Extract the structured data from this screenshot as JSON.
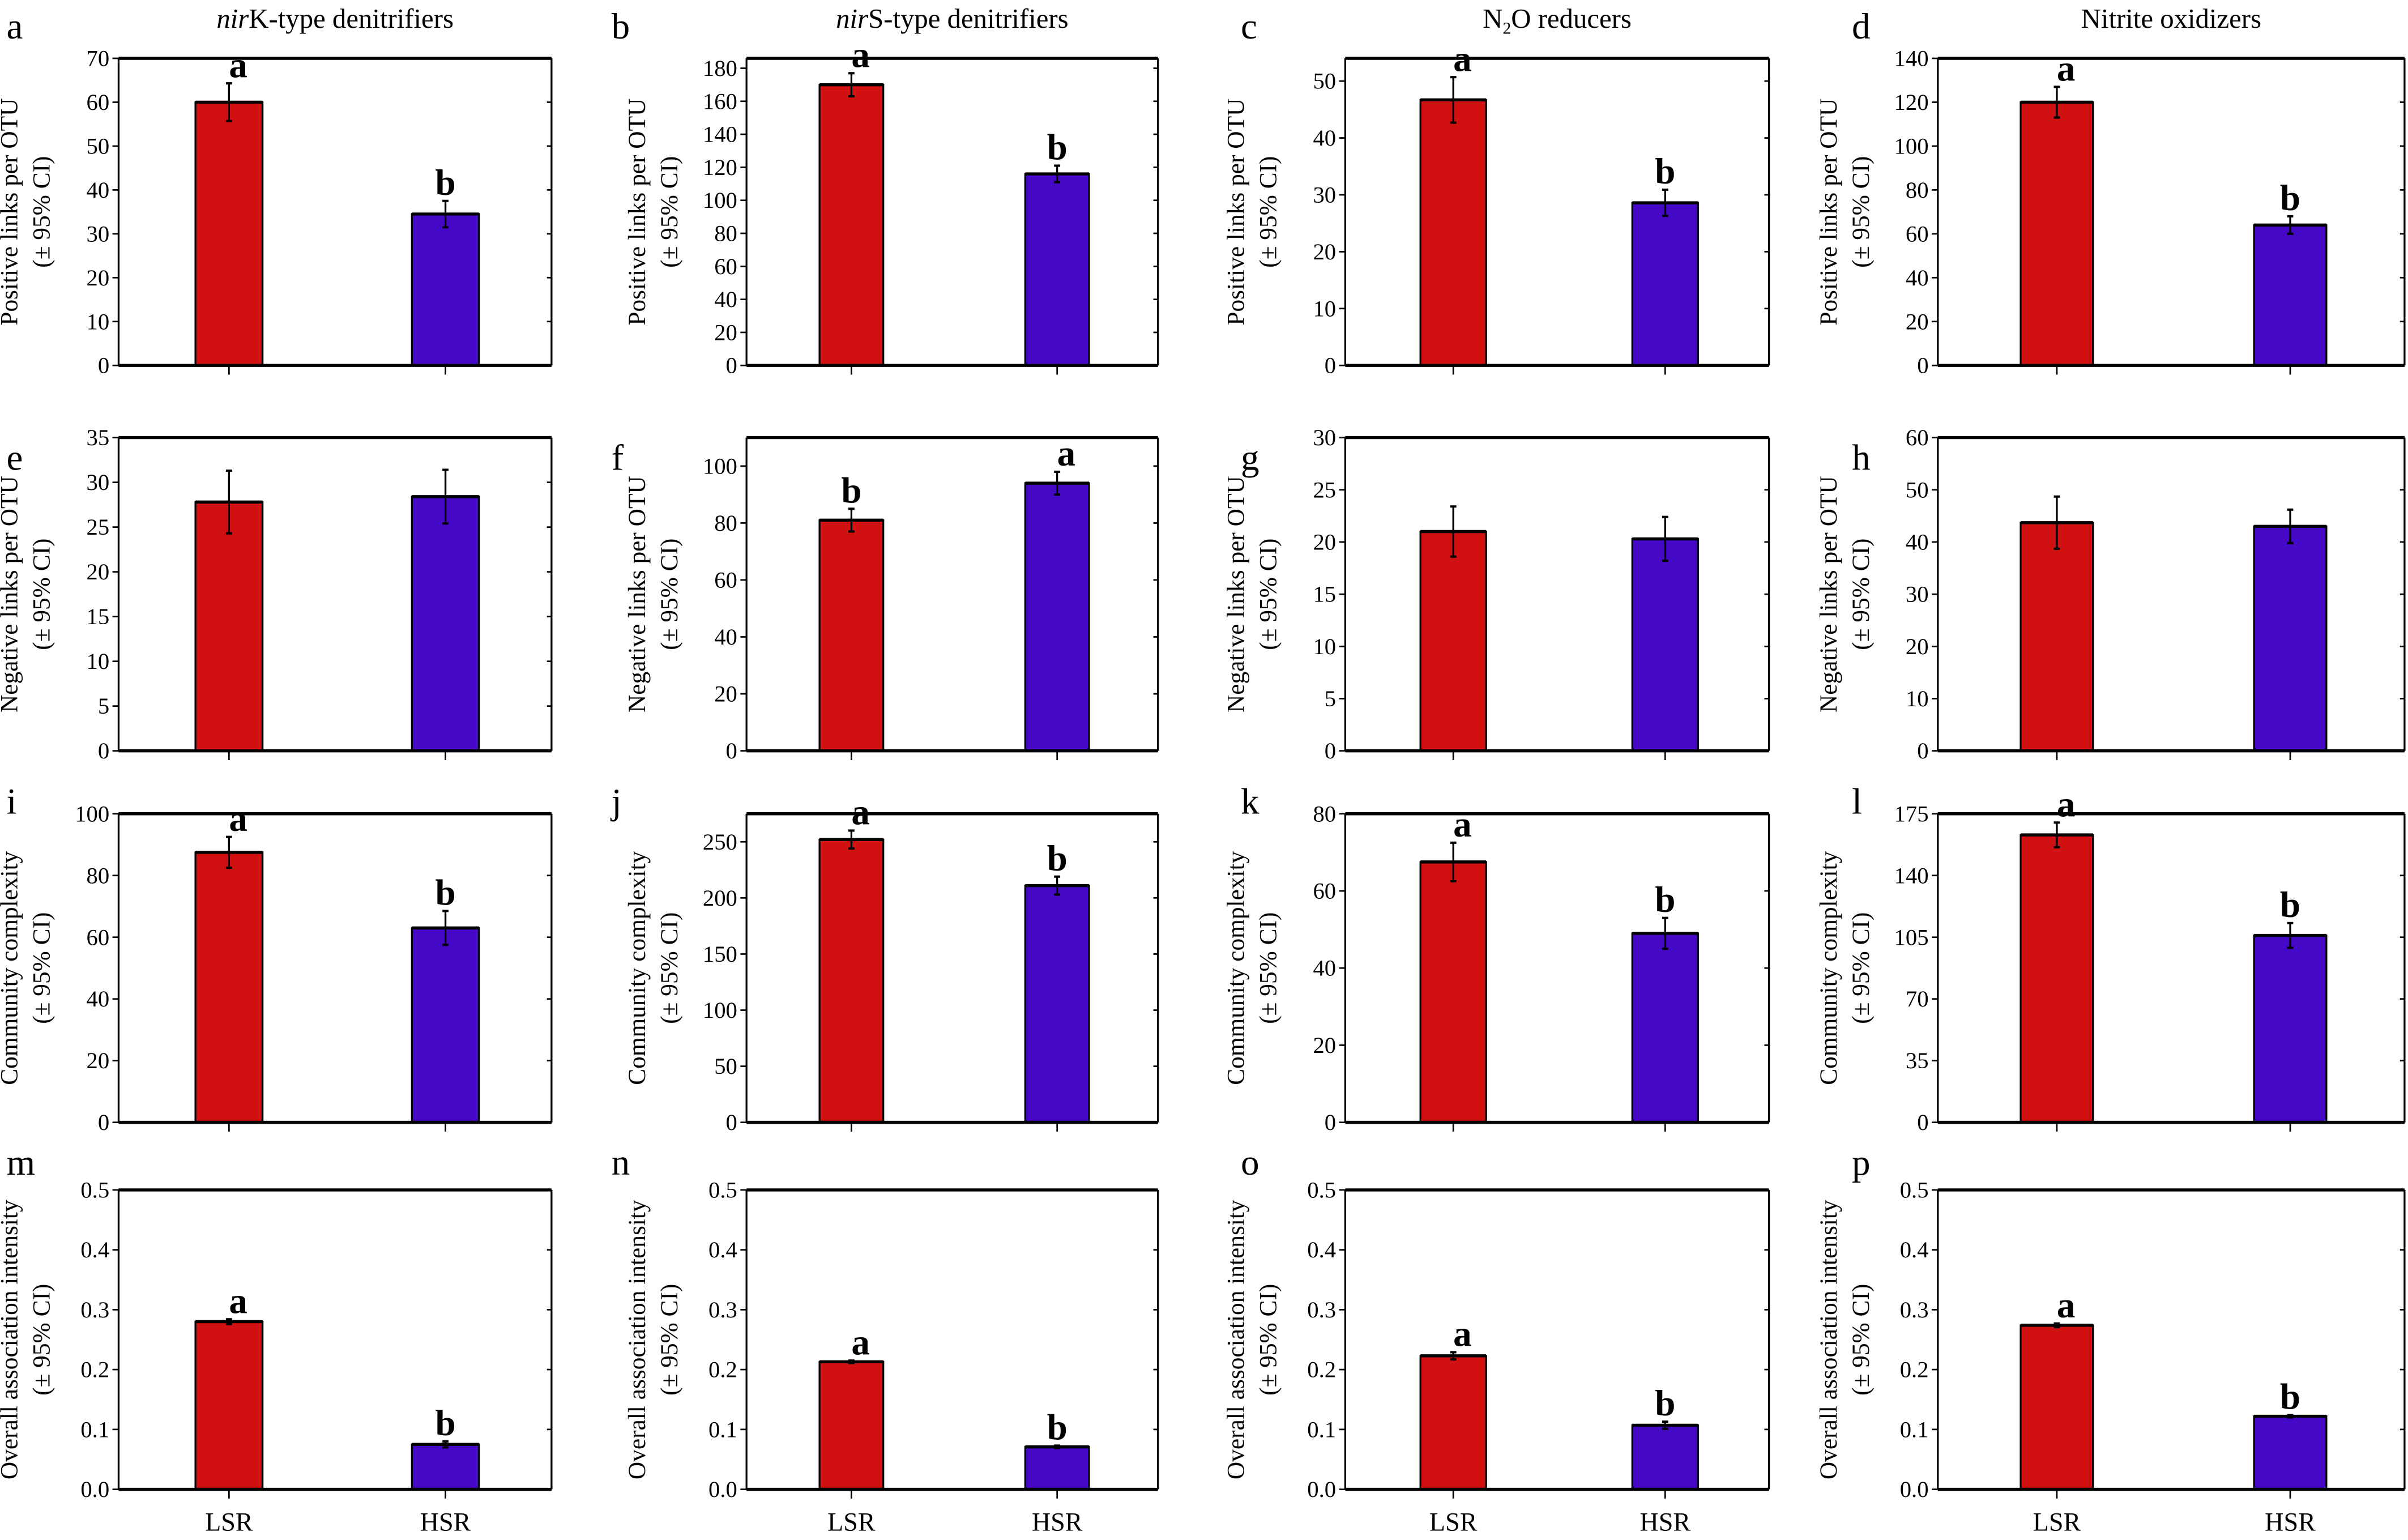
{
  "chart_data": {
    "type": "bar",
    "layout": "4x4 grid",
    "categories": [
      "LSR",
      "HSR"
    ],
    "colors": {
      "LSR": "#d11111",
      "HSR": "#4508c6"
    },
    "column_titles": [
      {
        "italic": "nir",
        "text": "K-type denitrifiers"
      },
      {
        "italic": "nir",
        "text": "S-type denitrifiers"
      },
      {
        "italic": "",
        "text": "N",
        "sub": "2",
        "rest": "O reducers"
      },
      {
        "italic": "",
        "text": "Nitrite oxidizers"
      }
    ],
    "row_ylabels": [
      [
        "Positive links per OTU",
        "(± 95% CI)"
      ],
      [
        "Negative links per OTU",
        "(± 95% CI)"
      ],
      [
        "Community complexity",
        "(± 95% CI)"
      ],
      [
        "Overall association intensity",
        "(± 95% CI)"
      ]
    ],
    "panels": [
      {
        "letter": "a",
        "ylim": [
          0,
          70
        ],
        "yticks": [
          0,
          10,
          20,
          30,
          40,
          50,
          60,
          70
        ],
        "values": [
          60,
          34.5
        ],
        "errors": [
          4.3,
          3
        ],
        "sig": [
          "a",
          "b"
        ]
      },
      {
        "letter": "b",
        "ylim": [
          0,
          186
        ],
        "yticks": [
          0,
          20,
          40,
          60,
          80,
          100,
          120,
          140,
          160,
          180
        ],
        "values": [
          170,
          116
        ],
        "errors": [
          7,
          5
        ],
        "sig": [
          "a",
          "b"
        ]
      },
      {
        "letter": "c",
        "ylim": [
          0,
          54
        ],
        "yticks": [
          0,
          10,
          20,
          30,
          40,
          50
        ],
        "values": [
          46.7,
          28.6
        ],
        "errors": [
          4,
          2.3
        ],
        "sig": [
          "a",
          "b"
        ]
      },
      {
        "letter": "d",
        "ylim": [
          0,
          140
        ],
        "yticks": [
          0,
          20,
          40,
          60,
          80,
          100,
          120,
          140
        ],
        "values": [
          120,
          64
        ],
        "errors": [
          7,
          4
        ],
        "sig": [
          "a",
          "b"
        ]
      },
      {
        "letter": "e",
        "ylim": [
          0,
          35
        ],
        "yticks": [
          0,
          5,
          10,
          15,
          20,
          25,
          30,
          35
        ],
        "values": [
          27.8,
          28.4
        ],
        "errors": [
          3.5,
          3
        ],
        "sig": [
          "",
          ""
        ]
      },
      {
        "letter": "f",
        "ylim": [
          0,
          110
        ],
        "yticks": [
          0,
          20,
          40,
          60,
          80,
          100
        ],
        "values": [
          81,
          94
        ],
        "errors": [
          4,
          4
        ],
        "sig": [
          "b",
          "a"
        ]
      },
      {
        "letter": "g",
        "ylim": [
          0,
          30
        ],
        "yticks": [
          0,
          5,
          10,
          15,
          20,
          25,
          30
        ],
        "values": [
          21,
          20.3
        ],
        "errors": [
          2.4,
          2.1
        ],
        "sig": [
          "",
          ""
        ]
      },
      {
        "letter": "h",
        "ylim": [
          0,
          60
        ],
        "yticks": [
          0,
          10,
          20,
          30,
          40,
          50,
          60
        ],
        "values": [
          43.7,
          43
        ],
        "errors": [
          5,
          3.2
        ],
        "sig": [
          "",
          ""
        ]
      },
      {
        "letter": "i",
        "ylim": [
          0,
          100
        ],
        "yticks": [
          0,
          20,
          40,
          60,
          80,
          100
        ],
        "values": [
          87.5,
          63
        ],
        "errors": [
          5,
          5.5
        ],
        "sig": [
          "a",
          "b"
        ]
      },
      {
        "letter": "j",
        "ylim": [
          0,
          275
        ],
        "yticks": [
          0,
          50,
          100,
          150,
          200,
          250
        ],
        "values": [
          252,
          211
        ],
        "errors": [
          8,
          8
        ],
        "sig": [
          "a",
          "b"
        ]
      },
      {
        "letter": "k",
        "ylim": [
          0,
          80
        ],
        "yticks": [
          0,
          20,
          40,
          60,
          80
        ],
        "values": [
          67.5,
          49
        ],
        "errors": [
          5,
          4
        ],
        "sig": [
          "a",
          "b"
        ]
      },
      {
        "letter": "l",
        "ylim": [
          0,
          175
        ],
        "yticks": [
          0,
          35,
          70,
          105,
          140,
          175
        ],
        "values": [
          163,
          106
        ],
        "errors": [
          7,
          7
        ],
        "sig": [
          "a",
          "b"
        ]
      },
      {
        "letter": "m",
        "ylim": [
          0,
          0.5
        ],
        "yticks": [
          0.0,
          0.1,
          0.2,
          0.3,
          0.4,
          0.5
        ],
        "values": [
          0.28,
          0.075
        ],
        "errors": [
          0.004,
          0.005
        ],
        "sig": [
          "a",
          "b"
        ]
      },
      {
        "letter": "n",
        "ylim": [
          0,
          0.5
        ],
        "yticks": [
          0.0,
          0.1,
          0.2,
          0.3,
          0.4,
          0.5
        ],
        "values": [
          0.213,
          0.071
        ],
        "errors": [
          0.002,
          0.002
        ],
        "sig": [
          "a",
          "b"
        ]
      },
      {
        "letter": "o",
        "ylim": [
          0,
          0.5
        ],
        "yticks": [
          0.0,
          0.1,
          0.2,
          0.3,
          0.4,
          0.5
        ],
        "values": [
          0.223,
          0.107
        ],
        "errors": [
          0.006,
          0.006
        ],
        "sig": [
          "a",
          "b"
        ]
      },
      {
        "letter": "p",
        "ylim": [
          0,
          0.5
        ],
        "yticks": [
          0.0,
          0.1,
          0.2,
          0.3,
          0.4,
          0.5
        ],
        "values": [
          0.274,
          0.122
        ],
        "errors": [
          0.003,
          0.002
        ],
        "sig": [
          "a",
          "b"
        ]
      }
    ]
  }
}
